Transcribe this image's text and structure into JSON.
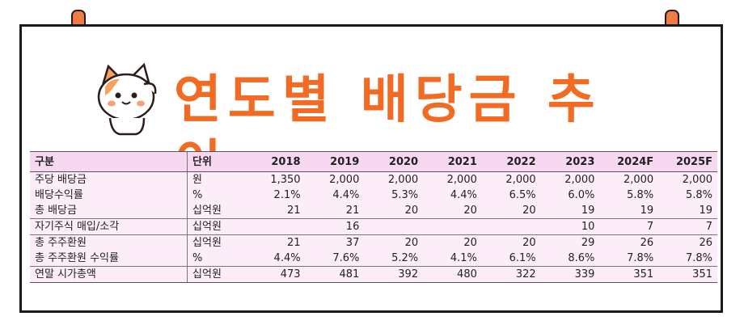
{
  "title": "연도별 배당금 추이",
  "colors": {
    "title": "#f26b25",
    "header_bg": "#f7d8f1",
    "row_bg": "#fdedf9",
    "peg": "#ef7b45"
  },
  "table": {
    "headers": [
      "구분",
      "단위",
      "2018",
      "2019",
      "2020",
      "2021",
      "2022",
      "2023",
      "2024F",
      "2025F"
    ],
    "rows": [
      {
        "label": "주당 배당금",
        "unit": "원",
        "values": [
          "1,350",
          "2,000",
          "2,000",
          "2,000",
          "2,000",
          "2,000",
          "2,000",
          "2,000"
        ]
      },
      {
        "label": "배당수익률",
        "unit": "%",
        "values": [
          "2.1%",
          "4.4%",
          "5.3%",
          "4.4%",
          "6.5%",
          "6.0%",
          "5.8%",
          "5.8%"
        ]
      },
      {
        "label": "총 배당금",
        "unit": "십억원",
        "values": [
          "21",
          "21",
          "20",
          "20",
          "20",
          "19",
          "19",
          "19"
        ]
      },
      {
        "label": "자기주식 매입/소각",
        "unit": "십억원",
        "values": [
          "",
          "16",
          "",
          "",
          "",
          "10",
          "7",
          "7"
        ]
      },
      {
        "label": "총 주주환원",
        "unit": "십억원",
        "values": [
          "21",
          "37",
          "20",
          "20",
          "20",
          "29",
          "26",
          "26"
        ]
      },
      {
        "label": "총 주주환원 수익률",
        "unit": "%",
        "values": [
          "4.4%",
          "7.6%",
          "5.2%",
          "4.1%",
          "6.1%",
          "8.6%",
          "7.8%",
          "7.8%"
        ]
      },
      {
        "label": "연말 시가총액",
        "unit": "십억원",
        "values": [
          "473",
          "481",
          "392",
          "480",
          "322",
          "339",
          "351",
          "351"
        ]
      }
    ]
  }
}
